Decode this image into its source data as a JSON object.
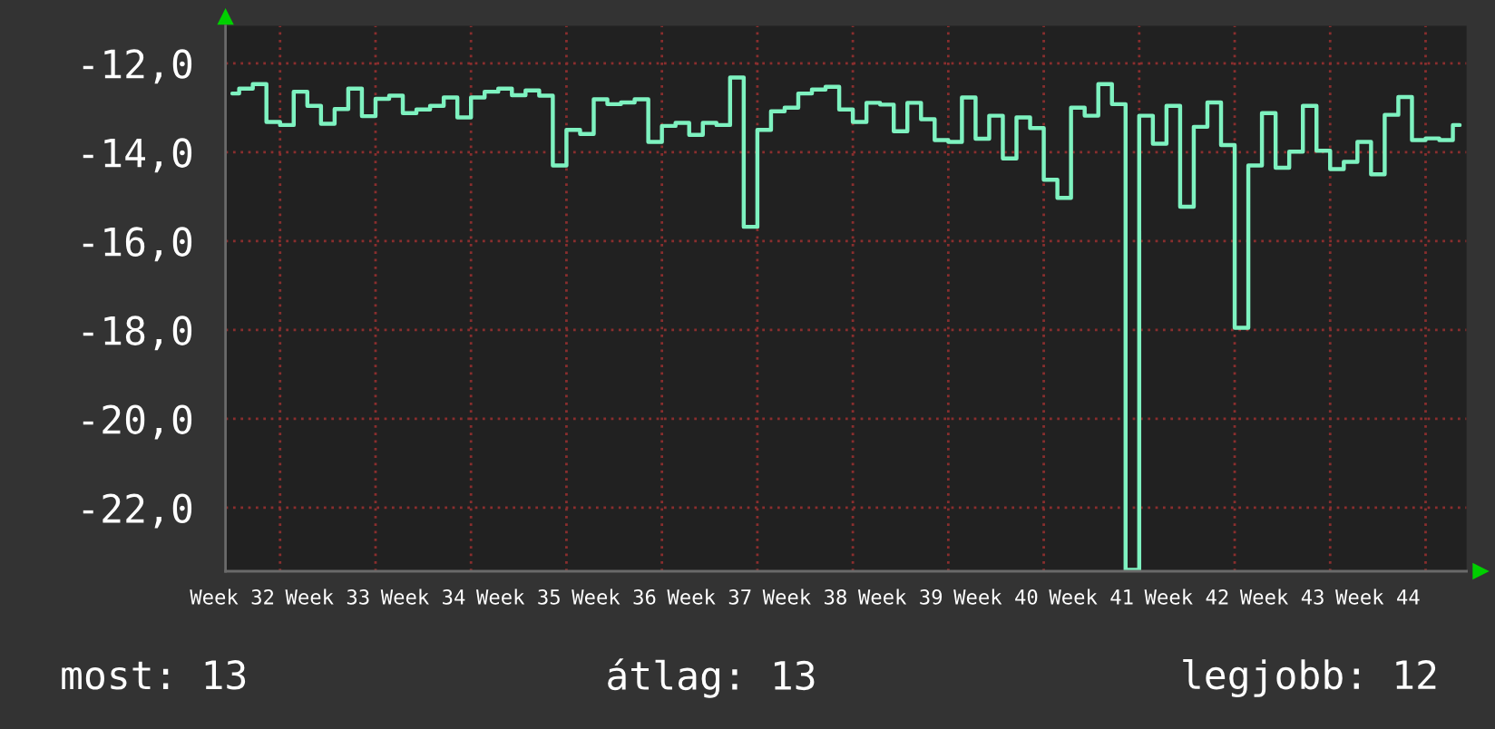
{
  "chart_data": {
    "type": "step",
    "categories": [
      "Week 32",
      null,
      null,
      null,
      null,
      null,
      null,
      "Week 33",
      null,
      null,
      null,
      null,
      null,
      null,
      "Week 34",
      null,
      null,
      null,
      null,
      null,
      null,
      "Week 35",
      null,
      null,
      null,
      null,
      null,
      null,
      "Week 36",
      null,
      null,
      null,
      null,
      null,
      null,
      "Week 37",
      null,
      null,
      null,
      null,
      null,
      null,
      "Week 38",
      null,
      null,
      null,
      null,
      null,
      null,
      "Week 39",
      null,
      null,
      null,
      null,
      null,
      null,
      "Week 40",
      null,
      null,
      null,
      null,
      null,
      null,
      "Week 41",
      null,
      null,
      null,
      null,
      null,
      null,
      "Week 42",
      null,
      null,
      null,
      null,
      null,
      null,
      "Week 43",
      null,
      null,
      null,
      null,
      null,
      null,
      "Week 44",
      null,
      null,
      null,
      null,
      null,
      null
    ],
    "series": [
      {
        "color": "#7ef2c0",
        "values": [
          -12.68,
          -12.57,
          -12.47,
          -13.32,
          -13.39,
          -12.64,
          -12.96,
          -13.36,
          -13.03,
          -12.57,
          -13.19,
          -12.8,
          -12.73,
          -13.12,
          -13.04,
          -12.96,
          -12.77,
          -13.22,
          -12.77,
          -12.64,
          -12.57,
          -12.72,
          -12.61,
          -12.73,
          -14.3,
          -13.5,
          -13.59,
          -12.81,
          -12.92,
          -12.88,
          -12.81,
          -13.77,
          -13.41,
          -13.34,
          -13.61,
          -13.34,
          -13.39,
          -12.32,
          -15.68,
          -13.5,
          -13.08,
          -13.0,
          -12.68,
          -12.59,
          -12.53,
          -13.04,
          -13.32,
          -12.89,
          -12.93,
          -13.53,
          -12.89,
          -13.26,
          -13.73,
          -13.77,
          -12.77,
          -13.7,
          -13.18,
          -14.14,
          -13.22,
          -13.46,
          -14.62,
          -15.03,
          -13.0,
          -13.18,
          -12.47,
          -12.92,
          -23.4,
          -13.18,
          -13.81,
          -12.96,
          -15.23,
          -13.43,
          -12.88,
          -13.84,
          -17.95,
          -14.3,
          -13.12,
          -14.35,
          -13.99,
          -12.96,
          -13.97,
          -14.38,
          -14.22,
          -13.77,
          -14.5,
          -13.16,
          -12.76,
          -13.73,
          -13.69,
          -13.73,
          -13.39
        ]
      }
    ],
    "ylim": [
      -23.43,
      -11.16
    ],
    "yticks": [
      {
        "value": -12,
        "label": "-12,0"
      },
      {
        "value": -14,
        "label": "-14,0"
      },
      {
        "value": -16,
        "label": "-16,0"
      },
      {
        "value": -18,
        "label": "-18,0"
      },
      {
        "value": -20,
        "label": "-20,0"
      },
      {
        "value": -22,
        "label": "-22,0"
      }
    ],
    "grid": true,
    "annotations": [
      "most: 13",
      "átlag: 13",
      "legjobb: 12"
    ]
  }
}
